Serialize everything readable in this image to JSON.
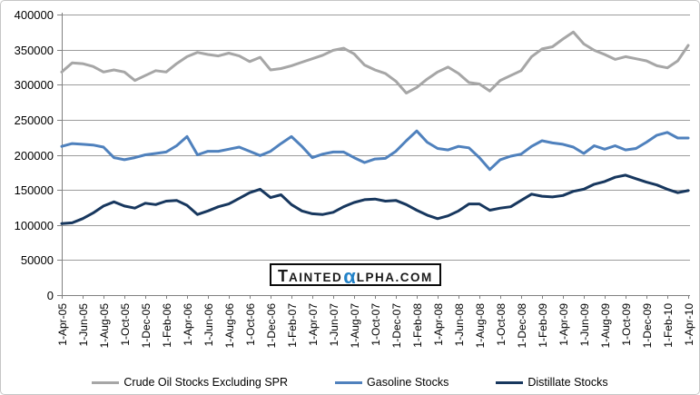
{
  "watermark": {
    "t": "T",
    "ainted": "AINTED",
    "alpha": "α",
    "lpha_com": "LPHA.COM",
    "alpha_color": "#2282c8",
    "text_color": "#1a1a1a"
  },
  "axis": {
    "line_color": "#808080",
    "gridline_color": "#9c9c9c",
    "label_color": "#000000"
  },
  "chart_data": {
    "type": "line",
    "title": "",
    "xlabel": "",
    "ylabel": "",
    "ylim": [
      0,
      400000
    ],
    "grid": "horizontal",
    "legend_position": "bottom",
    "y_ticks": [
      0,
      50000,
      100000,
      150000,
      200000,
      250000,
      300000,
      350000,
      400000
    ],
    "x_tick_labels": [
      "1-Apr-05",
      "1-Jun-05",
      "1-Aug-05",
      "1-Oct-05",
      "1-Dec-05",
      "1-Feb-06",
      "1-Apr-06",
      "1-Jun-06",
      "1-Aug-06",
      "1-Oct-06",
      "1-Dec-06",
      "1-Feb-07",
      "1-Apr-07",
      "1-Jun-07",
      "1-Aug-07",
      "1-Oct-07",
      "1-Dec-07",
      "1-Feb-08",
      "1-Apr-08",
      "1-Jun-08",
      "1-Aug-08",
      "1-Oct-08",
      "1-Dec-08",
      "1-Feb-09",
      "1-Apr-09",
      "1-Jun-09",
      "1-Aug-09",
      "1-Oct-09",
      "1-Dec-09",
      "1-Feb-10",
      "1-Apr-10"
    ],
    "x_range": {
      "start": "Apr-2005",
      "end": "Apr-2010",
      "values_step": "monthly estimates read from weekly line"
    },
    "series": [
      {
        "name": "Crude Oil Stocks Excluding SPR",
        "color": "#a6a6a6",
        "values": [
          318000,
          331000,
          330000,
          326000,
          318000,
          321000,
          318000,
          306000,
          313000,
          320000,
          318000,
          330000,
          340000,
          346000,
          343000,
          341000,
          345000,
          341000,
          333000,
          339000,
          321000,
          323000,
          327000,
          332000,
          337000,
          342000,
          349000,
          352000,
          344000,
          328000,
          321000,
          316000,
          305000,
          288000,
          296000,
          308000,
          318000,
          325000,
          316000,
          303000,
          301000,
          291000,
          306000,
          313000,
          320000,
          340000,
          351000,
          354000,
          365000,
          375000,
          358000,
          349000,
          343000,
          336000,
          340000,
          337000,
          334000,
          327000,
          324000,
          334000,
          356000
        ]
      },
      {
        "name": "Gasoline Stocks",
        "color": "#4f81bd",
        "values": [
          212000,
          216000,
          215000,
          214000,
          211000,
          196000,
          193000,
          196000,
          200000,
          202000,
          204000,
          213000,
          226000,
          200000,
          205000,
          205000,
          208000,
          211000,
          205000,
          199000,
          205000,
          216000,
          226000,
          212000,
          196000,
          201000,
          204000,
          204000,
          196000,
          189000,
          194000,
          195000,
          205000,
          220000,
          234000,
          218000,
          209000,
          207000,
          212000,
          210000,
          196000,
          179000,
          193000,
          198000,
          201000,
          212000,
          220000,
          217000,
          215000,
          211000,
          202000,
          213000,
          208000,
          213000,
          207000,
          209000,
          218000,
          228000,
          232000,
          224000,
          224000
        ]
      },
      {
        "name": "Distillate Stocks",
        "color": "#17375e",
        "values": [
          102000,
          103000,
          109000,
          117000,
          127000,
          133000,
          127000,
          124000,
          131000,
          129000,
          134000,
          135000,
          128000,
          115000,
          120000,
          126000,
          130000,
          138000,
          146000,
          151000,
          139000,
          143000,
          129000,
          120000,
          116000,
          115000,
          118000,
          126000,
          132000,
          136000,
          137000,
          134000,
          135000,
          129000,
          121000,
          114000,
          109000,
          113000,
          120000,
          130000,
          130000,
          121000,
          124000,
          126000,
          135000,
          144000,
          141000,
          140000,
          142000,
          148000,
          151000,
          158000,
          162000,
          168000,
          171000,
          166000,
          161000,
          157000,
          151000,
          146000,
          149000
        ]
      }
    ]
  }
}
